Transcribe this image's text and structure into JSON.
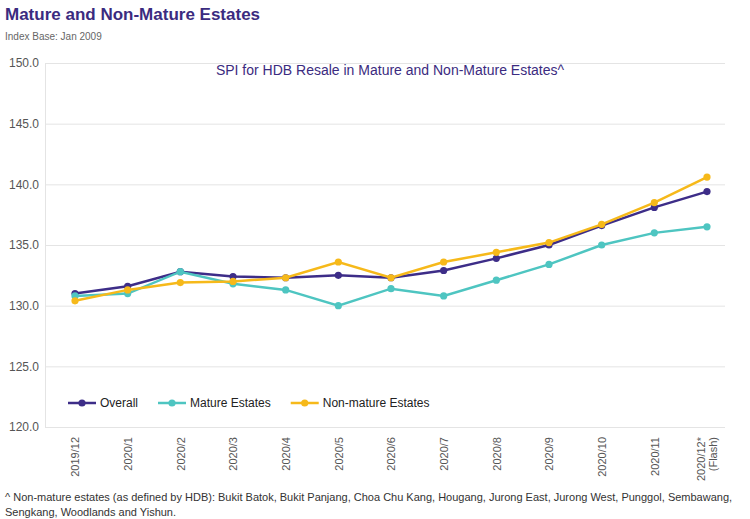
{
  "chart_data": {
    "type": "line",
    "title": "Mature and Non-Mature Estates",
    "subtitle": "Index Base: Jan 2009",
    "plot_title": "SPI for HDB Resale in Mature and Non-Mature Estates^",
    "footnote": "^ Non-mature estates (as defined by HDB): Bukit Batok, Bukit Panjang, Choa Chu Kang, Hougang, Jurong East, Jurong West, Punggol, Sembawang, Sengkang, Woodlands and Yishun.",
    "categories": [
      "2019/12",
      "2020/1",
      "2020/2",
      "2020/3",
      "2020/4",
      "2020/5",
      "2020/6",
      "2020/7",
      "2020/8",
      "2020/9",
      "2020/10",
      "2020/11",
      "2020/12*\n(Flash)"
    ],
    "series": [
      {
        "name": "Overall",
        "color": "#3d2d88",
        "values": [
          131.0,
          131.6,
          132.8,
          132.4,
          132.3,
          132.5,
          132.3,
          132.9,
          133.9,
          135.0,
          136.6,
          138.1,
          139.4
        ]
      },
      {
        "name": "Mature Estates",
        "color": "#4ec5c1",
        "values": [
          130.8,
          131.0,
          132.8,
          131.8,
          131.3,
          130.0,
          131.4,
          130.8,
          132.1,
          133.4,
          135.0,
          136.0,
          136.5
        ]
      },
      {
        "name": "Non-mature Estates",
        "color": "#f6b91a",
        "values": [
          130.4,
          131.3,
          131.9,
          132.0,
          132.3,
          133.6,
          132.3,
          133.6,
          134.4,
          135.2,
          136.7,
          138.5,
          140.6
        ]
      }
    ],
    "ylim": [
      120,
      150
    ],
    "yticks": [
      {
        "value": 120,
        "label": "120.0"
      },
      {
        "value": 125,
        "label": "125.0"
      },
      {
        "value": 130,
        "label": "130.0"
      },
      {
        "value": 135,
        "label": "135.0"
      },
      {
        "value": 140,
        "label": "140.0"
      },
      {
        "value": 145,
        "label": "145.0"
      },
      {
        "value": 150,
        "label": "150.0"
      }
    ],
    "grid": true,
    "legend": "lower left",
    "marker": "circle",
    "line_style": "solid"
  }
}
